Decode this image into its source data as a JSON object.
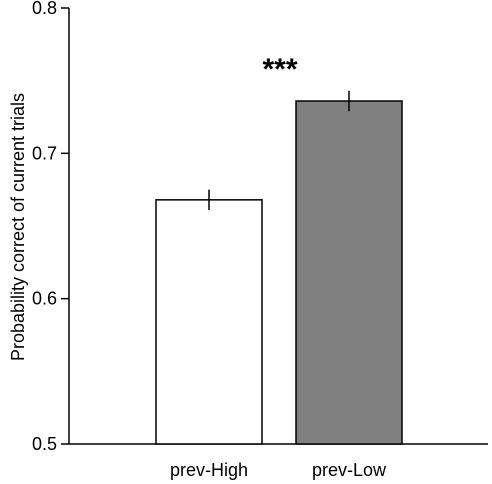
{
  "chart_data": {
    "type": "bar",
    "categories": [
      "prev-High",
      "prev-Low"
    ],
    "values": [
      0.668,
      0.736
    ],
    "errors": [
      0.007,
      0.007
    ],
    "bar_colors": [
      "#ffffff",
      "#808080"
    ],
    "edge_color": "#000000",
    "ylabel": "Probability correct of current trials",
    "xlabel": "",
    "ylim": [
      0.5,
      0.8
    ],
    "yticks": [
      0.5,
      0.6,
      0.7,
      0.8
    ],
    "ytick_labels": [
      "0.5",
      "0.6",
      "0.7",
      "0.8"
    ],
    "grid": false,
    "annotation": "***"
  }
}
